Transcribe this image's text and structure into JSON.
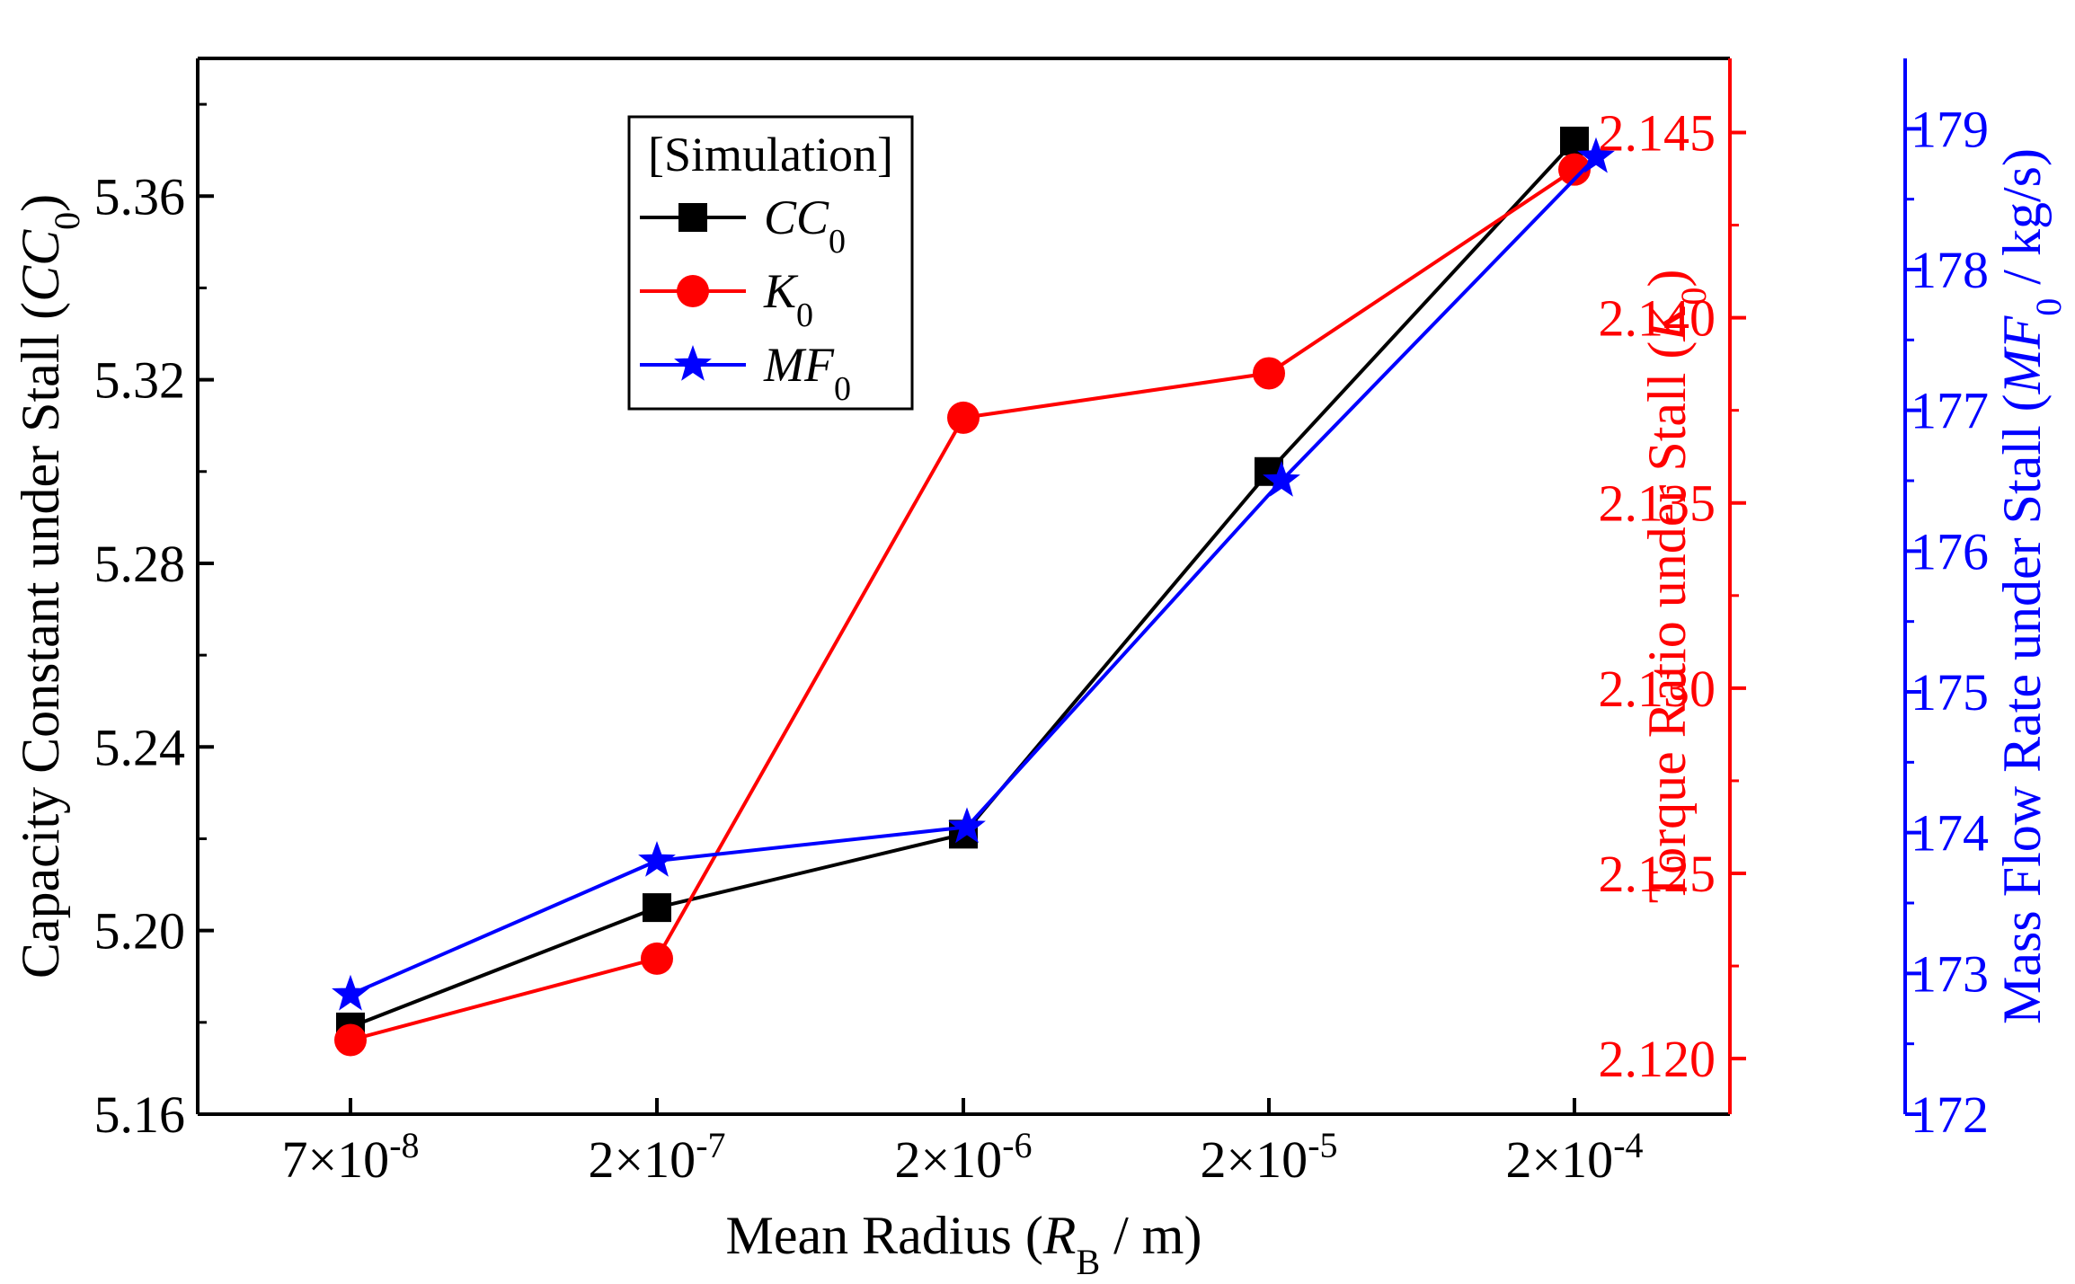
{
  "chart_data": {
    "type": "line",
    "title": "",
    "categories": [
      "7×10⁻⁸",
      "2×10⁻⁷",
      "2×10⁻⁶",
      "2×10⁻⁵",
      "2×10⁻⁴"
    ],
    "category_parts": [
      {
        "base": "7×10",
        "exp": "-8"
      },
      {
        "base": "2×10",
        "exp": "-7"
      },
      {
        "base": "2×10",
        "exp": "-6"
      },
      {
        "base": "2×10",
        "exp": "-5"
      },
      {
        "base": "2×10",
        "exp": "-4"
      }
    ],
    "xlabel": "Mean Radius (R_B / m)",
    "xlabel_parts": {
      "pre": "Mean Radius (",
      "italic": "R",
      "sub": "B",
      "post": " / m)"
    },
    "y_axes": [
      {
        "id": "cc",
        "side": "left",
        "color": "#000000",
        "label": "Capacity Constant under Stall (CC_0)",
        "label_parts": {
          "pre": "Capacity Constant under Stall (",
          "italic": "CC",
          "sub": "0",
          "post": ")"
        },
        "ylim": [
          5.16,
          5.39
        ],
        "ticks": [
          "5.16",
          "5.20",
          "5.24",
          "5.28",
          "5.32",
          "5.36"
        ]
      },
      {
        "id": "k",
        "side": "right",
        "color": "#ff0000",
        "label": "Torque Ratio under Stall (K_0)",
        "label_parts": {
          "pre": "Torque Ratio under Stall (",
          "italic": "K",
          "sub": "0",
          "post": ")"
        },
        "ylim": [
          2.1185,
          2.147
        ],
        "ticks": [
          "2.120",
          "2.125",
          "2.130",
          "2.135",
          "2.140",
          "2.145"
        ]
      },
      {
        "id": "mf",
        "side": "far-right",
        "color": "#0000ff",
        "label": "Mass Flow Rate under Stall (MF_0 / kg/s)",
        "label_parts": {
          "pre": "Mass Flow Rate under Stall (",
          "italic": "MF",
          "sub": "0",
          "post": " / kg/s)"
        },
        "ylim": [
          172,
          179.5
        ],
        "ticks": [
          "172",
          "173",
          "174",
          "175",
          "176",
          "177",
          "178",
          "179"
        ]
      }
    ],
    "series": [
      {
        "name": "CC0",
        "axis": "cc",
        "color": "#000000",
        "marker": "square",
        "values": [
          5.179,
          5.205,
          5.221,
          5.3,
          5.372
        ]
      },
      {
        "name": "K0",
        "axis": "k",
        "color": "#ff0000",
        "marker": "circle",
        "values": [
          2.1205,
          2.1227,
          2.1373,
          2.1385,
          2.144
        ]
      },
      {
        "name": "MF0",
        "axis": "mf",
        "color": "#0000ff",
        "marker": "star",
        "values": [
          172.85,
          173.8,
          174.04,
          176.5,
          178.8
        ]
      }
    ],
    "legend": {
      "title": "[Simulation]",
      "placement": "top-left",
      "entries": [
        {
          "series": "CC0",
          "italic": "CC",
          "sub": "0"
        },
        {
          "series": "K0",
          "italic": "K",
          "sub": "0"
        },
        {
          "series": "MF0",
          "italic": "MF",
          "sub": "0"
        }
      ]
    },
    "grid": false
  }
}
